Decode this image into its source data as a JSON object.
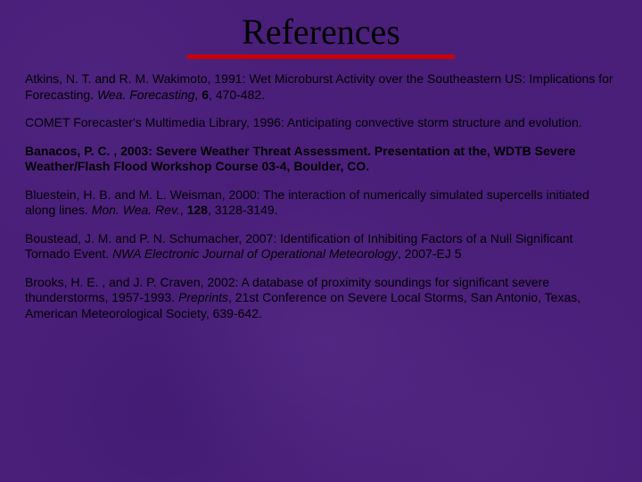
{
  "title": "References",
  "style": {
    "background_color": "#4a1f7a",
    "title_font": "Times New Roman",
    "title_fontsize": 40,
    "title_color": "#000000",
    "underline_color": "#cc0000",
    "underline_width": 300,
    "underline_height": 5,
    "body_font": "Arial",
    "body_fontsize": 14,
    "body_color": "#000000",
    "line_height": 1.25,
    "para_spacing": 14
  },
  "references": [
    {
      "pre": "Atkins, N. T. and R. M. Wakimoto, 1991:  Wet Microburst Activity over the Southeastern US:  Implications for Forecasting. ",
      "ital1": "Wea.  Forecasting",
      "mid1": ", ",
      "bold1": "6",
      "post": ", 470-482."
    },
    {
      "pre": "COMET Forecaster's Multimedia Library, 1996:  Anticipating convective storm structure and evolution."
    },
    {
      "allbold_pre": "Banacos, P. C. , 2003: Severe Weather Threat Assessment.  Presentation at the, WDTB Severe Weather/Flash Flood Workshop Course 03-4",
      "allbold_post": ", Boulder, CO."
    },
    {
      "pre": "Bluestein, H. B. and M. L. Weisman, 2000:  The interaction of numerically simulated supercells initiated along lines.  ",
      "ital1": "Mon. Wea. Rev.",
      "mid1": ", ",
      "bold1": "128",
      "post": ", 3128-3149."
    },
    {
      "pre": "Boustead, J. M. and P. N. Schumacher, 2007:  Identification of Inhibiting Factors of a Null Significant Tornado Event.  ",
      "ital1": "NWA Electronic Journal of Operational Meteorology",
      "post": ", 2007-EJ 5"
    },
    {
      "pre": "Brooks, H. E. , and J. P. Craven, 2002: A database of proximity soundings for significant severe thunderstorms, 1957-1993. ",
      "ital1": "Preprints",
      "post": ", 21st Conference on Severe Local Storms, San Antonio, Texas, American Meteorological Society, 639-642."
    }
  ]
}
